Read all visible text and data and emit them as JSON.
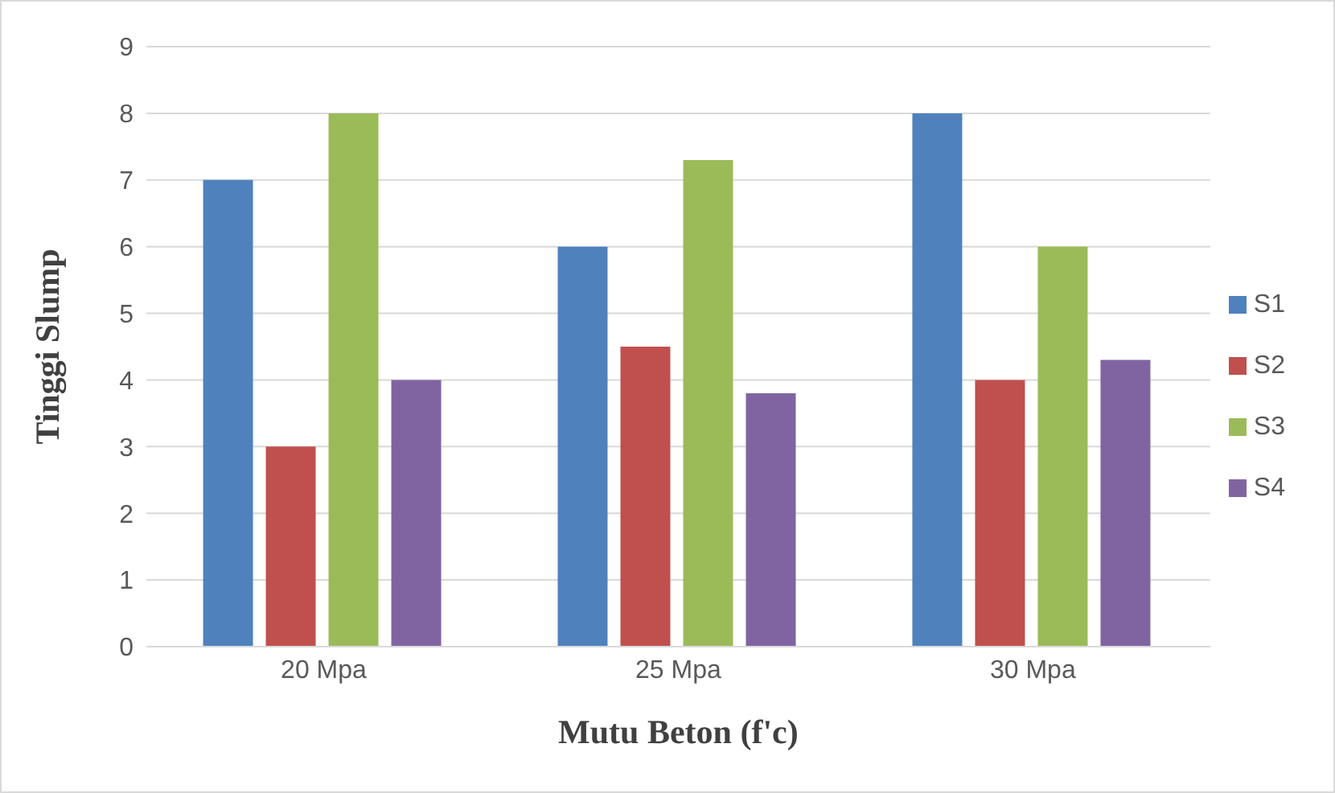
{
  "chart_data": {
    "type": "bar",
    "xlabel": "Mutu Beton (f'c)",
    "ylabel": "Tinggi Slump",
    "categories": [
      "20 Mpa",
      "25 Mpa",
      "30 Mpa"
    ],
    "series": [
      {
        "name": "S1",
        "color": "#4f81bd",
        "values": [
          7,
          6,
          8
        ]
      },
      {
        "name": "S2",
        "color": "#c0504d",
        "values": [
          3,
          4.5,
          4
        ]
      },
      {
        "name": "S3",
        "color": "#9bbb59",
        "values": [
          8,
          7.3,
          6
        ]
      },
      {
        "name": "S4",
        "color": "#8064a2",
        "values": [
          4,
          3.8,
          4.3
        ]
      }
    ],
    "ylim": [
      0,
      9
    ],
    "yticks": [
      0,
      1,
      2,
      3,
      4,
      5,
      6,
      7,
      8,
      9
    ],
    "grid": "y",
    "legend": "right"
  }
}
